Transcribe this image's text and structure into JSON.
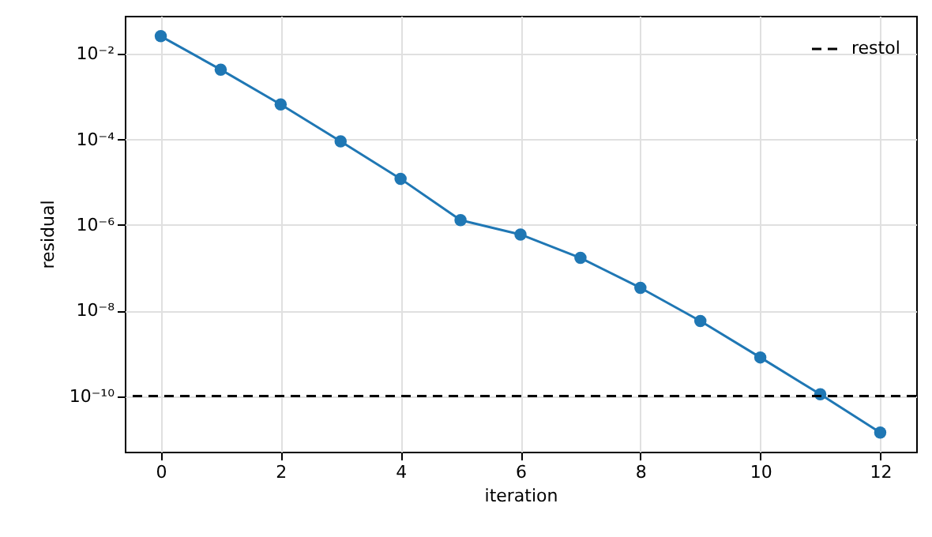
{
  "chart_data": {
    "type": "line",
    "xlabel": "iteration",
    "ylabel": "residual",
    "x": [
      0,
      1,
      2,
      3,
      4,
      5,
      6,
      7,
      8,
      9,
      10,
      11,
      12
    ],
    "series": [
      {
        "color": "#1f77b4",
        "values": [
          0.026,
          0.0043,
          0.00066,
          9e-05,
          1.2e-05,
          1.3e-06,
          6e-07,
          1.7e-07,
          3.4e-08,
          5.7e-09,
          8e-10,
          1.1e-10,
          1.4e-11
        ]
      }
    ],
    "log": "y",
    "xlim": [
      -0.6,
      12.6
    ],
    "xticks": [
      0,
      2,
      4,
      6,
      8,
      10,
      12
    ],
    "ylim": [
      5e-12,
      0.078
    ],
    "yticks": [
      {
        "value": 0.01,
        "label": "10⁻²"
      },
      {
        "value": 0.0001,
        "label": "10⁻⁴"
      },
      {
        "value": 1e-06,
        "label": "10⁻⁶"
      },
      {
        "value": 1e-08,
        "label": "10⁻⁸"
      },
      {
        "value": 1e-10,
        "label": "10⁻¹⁰"
      }
    ],
    "ref_lines": [
      {
        "axis": "y",
        "value": 1e-10,
        "label": "restol",
        "color": "#000000",
        "line_style": "dashed"
      }
    ],
    "grid": true,
    "legend": "top right",
    "marker": "circle",
    "line_style": "solid"
  }
}
